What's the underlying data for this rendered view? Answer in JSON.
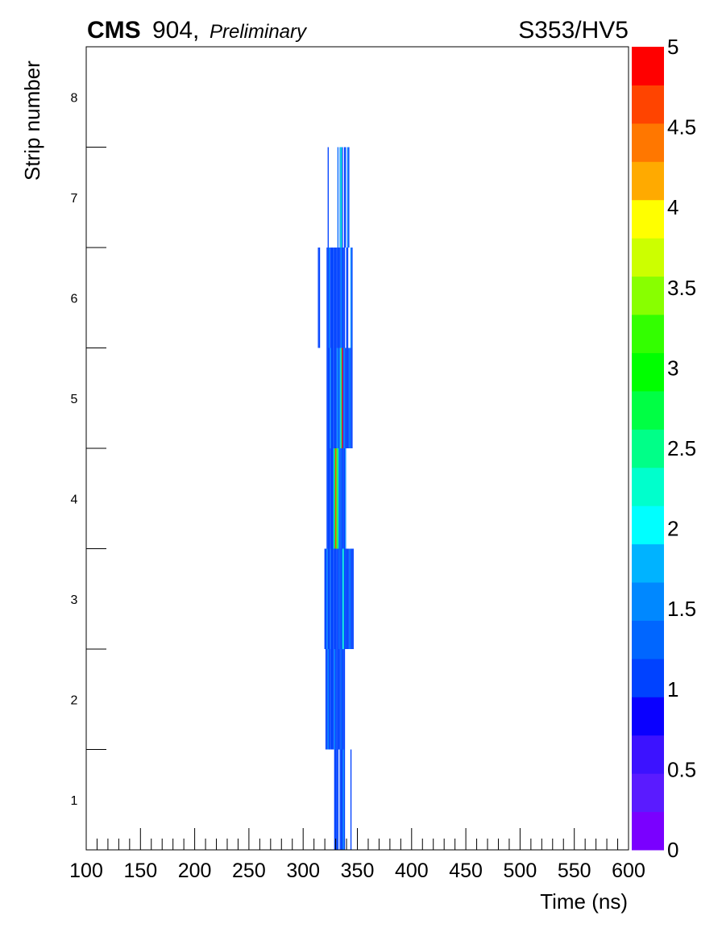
{
  "header": {
    "experiment": "CMS",
    "label": "904,",
    "status": "Preliminary",
    "title": "S353/HV5"
  },
  "chart_data": {
    "type": "heatmap",
    "xlabel": "Time (ns)",
    "ylabel": "Strip number",
    "xlim": [
      100,
      600
    ],
    "ylim": [
      0.5,
      8.5
    ],
    "zlim": [
      0,
      5
    ],
    "x_ticks": [
      "100",
      "150",
      "200",
      "250",
      "300",
      "350",
      "400",
      "450",
      "500",
      "550",
      "600"
    ],
    "y_ticks": [
      "1",
      "2",
      "3",
      "4",
      "5",
      "6",
      "7",
      "8"
    ],
    "z_ticks": [
      "0",
      "0.5",
      "1",
      "1.5",
      "2",
      "2.5",
      "3",
      "3.5",
      "4",
      "4.5",
      "5"
    ],
    "colorbar_colors": [
      "#7a00ff",
      "#5a1bff",
      "#3c12ff",
      "#0a00ff",
      "#0042ff",
      "#0066ff",
      "#0088ff",
      "#00b3ff",
      "#00ffff",
      "#00ffcc",
      "#00ff88",
      "#00ff44",
      "#00ff00",
      "#33ff00",
      "#88ff00",
      "#ccff00",
      "#ffff00",
      "#ffaa00",
      "#ff7700",
      "#ff4400",
      "#ff0000"
    ],
    "cells": [
      {
        "strip": 1,
        "bins": [
          [
            328.6,
            1
          ],
          [
            329.6,
            1
          ],
          [
            330.6,
            1
          ],
          [
            331.6,
            1
          ],
          [
            333.6,
            1
          ],
          [
            334.6,
            1
          ],
          [
            335.6,
            1
          ],
          [
            336.6,
            1.6
          ],
          [
            337.6,
            1
          ],
          [
            343.6,
            1
          ]
        ]
      },
      {
        "strip": 2,
        "bins": [
          [
            320.6,
            1
          ],
          [
            321.6,
            1
          ],
          [
            322.6,
            1.6
          ],
          [
            323.6,
            1
          ],
          [
            324.6,
            1
          ],
          [
            325.6,
            1
          ],
          [
            326.6,
            1
          ],
          [
            327.6,
            1
          ],
          [
            328.6,
            1.6
          ],
          [
            329.6,
            1
          ],
          [
            330.6,
            1
          ],
          [
            331.6,
            1
          ],
          [
            332.6,
            1
          ],
          [
            333.6,
            1
          ],
          [
            334.6,
            1.2
          ],
          [
            335.6,
            1
          ],
          [
            336.6,
            1
          ],
          [
            337.6,
            1
          ]
        ]
      },
      {
        "strip": 3,
        "bins": [
          [
            319.6,
            1
          ],
          [
            320.6,
            1
          ],
          [
            321.6,
            1.6
          ],
          [
            322.6,
            1
          ],
          [
            323.6,
            1
          ],
          [
            324.6,
            1.2
          ],
          [
            325.6,
            1
          ],
          [
            326.6,
            1
          ],
          [
            327.6,
            1
          ],
          [
            328.6,
            1
          ],
          [
            329.6,
            1
          ],
          [
            330.6,
            1
          ],
          [
            331.6,
            1
          ],
          [
            332.6,
            1.2
          ],
          [
            333.6,
            1
          ],
          [
            334.6,
            1
          ],
          [
            335.6,
            1.6
          ],
          [
            336.6,
            2.2
          ],
          [
            337.6,
            1
          ],
          [
            338.6,
            1
          ],
          [
            339.6,
            1
          ],
          [
            340.6,
            1
          ],
          [
            341.6,
            1
          ],
          [
            342.6,
            1.6
          ],
          [
            343.6,
            1
          ],
          [
            344.6,
            1
          ],
          [
            345.6,
            1
          ]
        ]
      },
      {
        "strip": 4,
        "bins": [
          [
            321.6,
            1
          ],
          [
            322.6,
            1
          ],
          [
            323.6,
            1
          ],
          [
            324.6,
            1
          ],
          [
            325.6,
            1
          ],
          [
            326.6,
            1
          ],
          [
            327.6,
            1.6
          ],
          [
            328.6,
            2.8
          ],
          [
            329.6,
            4.6
          ],
          [
            330.6,
            3.2
          ],
          [
            331.6,
            2.6
          ],
          [
            332.6,
            1.6
          ],
          [
            333.6,
            1
          ],
          [
            334.6,
            1.2
          ],
          [
            335.6,
            1
          ],
          [
            336.6,
            1
          ],
          [
            337.6,
            1
          ],
          [
            338.6,
            1.6
          ]
        ]
      },
      {
        "strip": 5,
        "bins": [
          [
            321.6,
            1
          ],
          [
            322.6,
            1
          ],
          [
            323.6,
            1
          ],
          [
            324.6,
            1.6
          ],
          [
            325.6,
            1
          ],
          [
            326.6,
            1
          ],
          [
            327.6,
            1
          ],
          [
            328.6,
            1
          ],
          [
            329.6,
            1
          ],
          [
            330.6,
            1.2
          ],
          [
            331.6,
            1.6
          ],
          [
            332.6,
            1
          ],
          [
            333.6,
            1.8
          ],
          [
            334.6,
            2.4
          ],
          [
            335.6,
            5
          ],
          [
            336.6,
            1
          ],
          [
            337.6,
            1.6
          ],
          [
            338.6,
            1
          ],
          [
            339.6,
            1
          ],
          [
            340.6,
            1
          ],
          [
            341.6,
            1
          ],
          [
            342.6,
            1.6
          ],
          [
            343.6,
            1
          ],
          [
            344.6,
            1
          ]
        ]
      },
      {
        "strip": 6,
        "bins": [
          [
            313.6,
            1
          ],
          [
            314.6,
            1
          ],
          [
            321.6,
            1
          ],
          [
            322.6,
            1
          ],
          [
            323.6,
            1.6
          ],
          [
            324.6,
            1
          ],
          [
            325.6,
            1
          ],
          [
            326.6,
            1
          ],
          [
            327.6,
            1
          ],
          [
            328.6,
            1
          ],
          [
            329.6,
            1
          ],
          [
            330.6,
            1
          ],
          [
            331.6,
            1
          ],
          [
            332.6,
            1
          ],
          [
            333.6,
            1
          ],
          [
            334.6,
            1.6
          ],
          [
            335.6,
            1
          ],
          [
            336.6,
            1
          ],
          [
            337.6,
            1
          ],
          [
            339.6,
            1
          ],
          [
            340.6,
            1
          ],
          [
            343.6,
            1.6
          ],
          [
            344.6,
            1
          ]
        ]
      },
      {
        "strip": 7,
        "bins": [
          [
            322.6,
            1
          ],
          [
            331.6,
            1.2
          ],
          [
            333.6,
            1.6
          ],
          [
            334.6,
            2.2
          ],
          [
            335.6,
            1
          ],
          [
            337.6,
            1
          ],
          [
            338.6,
            1
          ],
          [
            340.6,
            1.6
          ],
          [
            341.6,
            1
          ]
        ]
      }
    ]
  }
}
